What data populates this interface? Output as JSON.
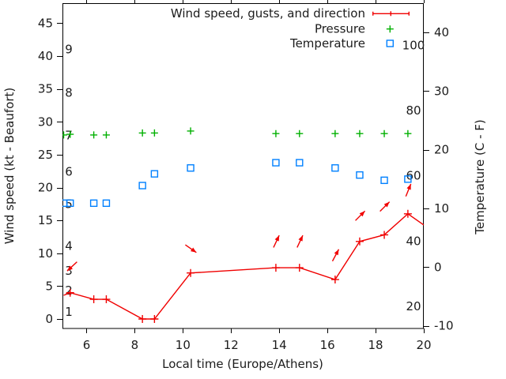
{
  "chart_data": {
    "type": "line",
    "title": "",
    "xlabel": "Local time (Europe/Athens)",
    "ylabel_left": "Wind speed (kt - Beaufort)",
    "ylabel_right": "Temperature (C - F)",
    "x_range": [
      5,
      20
    ],
    "x_ticks": [
      6,
      8,
      10,
      12,
      14,
      16,
      18,
      20
    ],
    "y_left_ticks_kt": [
      0,
      5,
      10,
      15,
      20,
      25,
      30,
      35,
      40,
      45
    ],
    "y_right_ticks_c": [
      -10,
      0,
      10,
      20,
      30,
      40
    ],
    "beaufort_scale_labels": [
      {
        "bft": "1",
        "kt": 1.1
      },
      {
        "bft": "2",
        "kt": 4.3
      },
      {
        "bft": "3",
        "kt": 7.3
      },
      {
        "bft": "4",
        "kt": 11.1
      },
      {
        "bft": "5",
        "kt": 17.5
      },
      {
        "bft": "6",
        "kt": 22.4
      },
      {
        "bft": "7",
        "kt": 27.9
      },
      {
        "bft": "8",
        "kt": 34.4
      },
      {
        "bft": "9",
        "kt": 41.0
      }
    ],
    "fahrenheit_scale_labels": [
      {
        "f": 20
      },
      {
        "f": 40
      },
      {
        "f": 60
      },
      {
        "f": 80
      },
      {
        "f": 100
      }
    ],
    "grid": false,
    "legend_position": "top-right-inside",
    "legend": [
      {
        "label": "Wind speed, gusts, and direction",
        "marker": "errorbar-line",
        "color": "#f00000"
      },
      {
        "label": "Pressure",
        "marker": "plus",
        "color": "#00b000"
      },
      {
        "label": "Temperature",
        "marker": "open-square",
        "color": "#0080ff"
      }
    ],
    "series": [
      {
        "name": "wind_speed",
        "unit": "kt",
        "axis": "left",
        "color": "#f00000",
        "points": [
          {
            "t": 5.05,
            "kt": 3.6,
            "marker": false
          },
          {
            "t": 5.32,
            "kt": 4.0,
            "marker": true
          },
          {
            "t": 6.3,
            "kt": 3.0,
            "marker": true
          },
          {
            "t": 6.82,
            "kt": 3.0,
            "marker": true
          },
          {
            "t": 8.32,
            "kt": 0.0,
            "marker": true
          },
          {
            "t": 8.82,
            "kt": 0.0,
            "marker": true
          },
          {
            "t": 10.32,
            "kt": 7.0,
            "marker": true
          },
          {
            "t": 13.86,
            "kt": 7.8,
            "marker": true
          },
          {
            "t": 14.84,
            "kt": 7.8,
            "marker": true
          },
          {
            "t": 16.32,
            "kt": 6.0,
            "marker": true
          },
          {
            "t": 17.34,
            "kt": 11.8,
            "marker": true
          },
          {
            "t": 18.36,
            "kt": 12.8,
            "marker": true
          },
          {
            "t": 19.34,
            "kt": 16.0,
            "marker": true
          },
          {
            "t": 20.0,
            "kt": 14.3,
            "marker": false
          }
        ]
      },
      {
        "name": "wind_gust_direction_arrows",
        "unit": "kt",
        "axis": "left",
        "color": "#f00000",
        "arrows": [
          {
            "t": 5.4,
            "kt": 8.0,
            "angle_deg": 223
          },
          {
            "t": 10.33,
            "kt": 10.7,
            "angle_deg": 325
          },
          {
            "t": 13.88,
            "kt": 11.8,
            "angle_deg": 65
          },
          {
            "t": 14.86,
            "kt": 11.8,
            "angle_deg": 65
          },
          {
            "t": 16.34,
            "kt": 9.7,
            "angle_deg": 62
          },
          {
            "t": 17.36,
            "kt": 15.7,
            "angle_deg": 45
          },
          {
            "t": 18.38,
            "kt": 17.1,
            "angle_deg": 45
          },
          {
            "t": 19.36,
            "kt": 19.6,
            "angle_deg": 68
          }
        ]
      },
      {
        "name": "pressure",
        "axis": "left-equivalent",
        "color": "#00b000",
        "points": [
          {
            "t": 5.05,
            "level_kt": 28.0
          },
          {
            "t": 5.32,
            "level_kt": 28.1
          },
          {
            "t": 6.3,
            "level_kt": 28.0
          },
          {
            "t": 6.82,
            "level_kt": 28.0
          },
          {
            "t": 8.32,
            "level_kt": 28.3
          },
          {
            "t": 8.82,
            "level_kt": 28.3
          },
          {
            "t": 10.32,
            "level_kt": 28.6
          },
          {
            "t": 13.86,
            "level_kt": 28.2
          },
          {
            "t": 14.84,
            "level_kt": 28.2
          },
          {
            "t": 16.32,
            "level_kt": 28.2
          },
          {
            "t": 17.34,
            "level_kt": 28.2
          },
          {
            "t": 18.36,
            "level_kt": 28.2
          },
          {
            "t": 19.34,
            "level_kt": 28.2
          }
        ]
      },
      {
        "name": "temperature",
        "unit": "C",
        "axis": "right",
        "color": "#0080ff",
        "points": [
          {
            "t": 5.05,
            "c": 10.9
          },
          {
            "t": 5.32,
            "c": 10.9
          },
          {
            "t": 6.3,
            "c": 10.9
          },
          {
            "t": 6.82,
            "c": 10.9
          },
          {
            "t": 8.32,
            "c": 13.9
          },
          {
            "t": 8.82,
            "c": 15.9
          },
          {
            "t": 10.32,
            "c": 16.9
          },
          {
            "t": 13.86,
            "c": 17.8
          },
          {
            "t": 14.84,
            "c": 17.8
          },
          {
            "t": 16.32,
            "c": 16.9
          },
          {
            "t": 17.34,
            "c": 15.7
          },
          {
            "t": 18.36,
            "c": 14.8
          },
          {
            "t": 19.34,
            "c": 15.0
          }
        ]
      }
    ]
  }
}
